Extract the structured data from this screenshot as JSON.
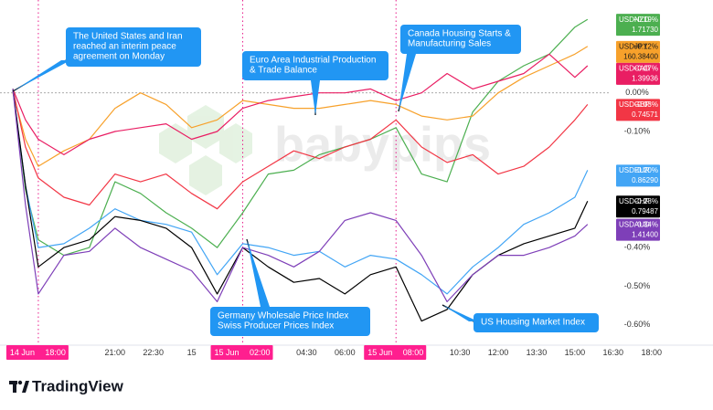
{
  "chart_data": {
    "type": "line",
    "watermark": "babypips",
    "brand": "TradingView",
    "x": [
      17,
      17.5,
      18,
      19,
      20,
      21,
      22,
      23,
      24,
      25,
      26,
      27,
      28,
      29,
      30,
      31,
      32,
      33,
      34,
      35,
      36,
      37,
      38,
      39,
      39.5
    ],
    "xlim": [
      16.5,
      40.4
    ],
    "xticks": [
      {
        "value": 18,
        "label": "18:00"
      },
      {
        "value": 21,
        "label": "21:00"
      },
      {
        "value": 22.5,
        "label": "22:30"
      },
      {
        "value": 24,
        "label": "15"
      },
      {
        "value": 26,
        "label": "02:00"
      },
      {
        "value": 28.5,
        "label": "04:30"
      },
      {
        "value": 30,
        "label": "06:00"
      },
      {
        "value": 32,
        "label": "08:00"
      },
      {
        "value": 34.5,
        "label": "10:30"
      },
      {
        "value": 36,
        "label": "12:00"
      },
      {
        "value": 37.5,
        "label": "13:30"
      },
      {
        "value": 39,
        "label": "15:00"
      },
      {
        "value": 40.5,
        "label": "16:30"
      },
      {
        "value": 42,
        "label": "18:00"
      }
    ],
    "marker_dates": [
      {
        "value": 18,
        "label": "14 Jun"
      },
      {
        "value": 26,
        "label": "15 Jun"
      },
      {
        "value": 32,
        "label": "15 Jun"
      }
    ],
    "ylim": [
      -0.65,
      0.24
    ],
    "yticks": [
      {
        "value": 0,
        "label": "0.00%"
      },
      {
        "value": -0.1,
        "label": "-0.10%"
      },
      {
        "value": -0.4,
        "label": "-0.40%"
      },
      {
        "value": -0.5,
        "label": "-0.50%"
      },
      {
        "value": -0.6,
        "label": "-0.60%"
      }
    ],
    "zero_line": true,
    "series": [
      {
        "name": "USDNZD",
        "color": "#4caf50",
        "text_color": "#ffffff",
        "change_label": "+0.19%",
        "price": "1.71730",
        "values": [
          0.01,
          -0.25,
          -0.38,
          -0.42,
          -0.4,
          -0.23,
          -0.26,
          -0.31,
          -0.35,
          -0.4,
          -0.31,
          -0.21,
          -0.2,
          -0.16,
          -0.14,
          -0.12,
          -0.09,
          -0.21,
          -0.23,
          -0.05,
          0.03,
          0.07,
          0.1,
          0.17,
          0.19
        ]
      },
      {
        "name": "USDJPY",
        "color": "#f7a12b",
        "text_color": "#1a1a1a",
        "change_label": "+0.12%",
        "price": "160.38400",
        "values": [
          0.0,
          -0.12,
          -0.19,
          -0.15,
          -0.12,
          -0.04,
          0.0,
          -0.03,
          -0.09,
          -0.07,
          -0.02,
          -0.03,
          -0.04,
          -0.04,
          -0.03,
          -0.02,
          -0.03,
          -0.06,
          -0.07,
          -0.06,
          0.0,
          0.04,
          0.07,
          0.1,
          0.12
        ]
      },
      {
        "name": "USDCAD",
        "color": "#e91e63",
        "text_color": "#ffffff",
        "change_label": "+0.07%",
        "price": "1.39936",
        "values": [
          0.01,
          -0.07,
          -0.12,
          -0.16,
          -0.12,
          -0.1,
          -0.09,
          -0.08,
          -0.12,
          -0.1,
          -0.04,
          -0.02,
          -0.01,
          0.0,
          0.0,
          0.01,
          -0.02,
          0.0,
          0.05,
          0.01,
          0.03,
          0.05,
          0.1,
          0.04,
          0.07
        ]
      },
      {
        "name": "USDGBP",
        "color": "#f23645",
        "text_color": "#ffffff",
        "change_label": "-0.03%",
        "price": "0.74571",
        "values": [
          0.01,
          -0.14,
          -0.22,
          -0.27,
          -0.29,
          -0.21,
          -0.23,
          -0.21,
          -0.26,
          -0.3,
          -0.23,
          -0.19,
          -0.15,
          -0.17,
          -0.14,
          -0.12,
          -0.07,
          -0.14,
          -0.18,
          -0.16,
          -0.21,
          -0.19,
          -0.14,
          -0.07,
          -0.03
        ]
      },
      {
        "name": "USDEUR",
        "color": "#42a5f5",
        "text_color": "#ffffff",
        "change_label": "-0.20%",
        "price": "0.86290",
        "values": [
          0.01,
          -0.24,
          -0.4,
          -0.39,
          -0.35,
          -0.3,
          -0.33,
          -0.34,
          -0.36,
          -0.47,
          -0.39,
          -0.4,
          -0.42,
          -0.41,
          -0.45,
          -0.42,
          -0.43,
          -0.47,
          -0.52,
          -0.45,
          -0.4,
          -0.34,
          -0.31,
          -0.27,
          -0.2
        ]
      },
      {
        "name": "USDCHF",
        "color": "#000000",
        "text_color": "#ffffff",
        "change_label": "-0.28%",
        "price": "0.79487",
        "values": [
          0.01,
          -0.24,
          -0.45,
          -0.4,
          -0.38,
          -0.32,
          -0.33,
          -0.35,
          -0.4,
          -0.52,
          -0.4,
          -0.45,
          -0.49,
          -0.48,
          -0.52,
          -0.47,
          -0.45,
          -0.59,
          -0.56,
          -0.47,
          -0.42,
          -0.39,
          -0.37,
          -0.35,
          -0.28
        ]
      },
      {
        "name": "USDAUD",
        "color": "#7e3fb8",
        "text_color": "#ffffff",
        "change_label": "-0.34%",
        "price": "1.41400",
        "values": [
          0.01,
          -0.29,
          -0.52,
          -0.42,
          -0.41,
          -0.35,
          -0.4,
          -0.43,
          -0.46,
          -0.54,
          -0.4,
          -0.42,
          -0.45,
          -0.41,
          -0.33,
          -0.31,
          -0.33,
          -0.42,
          -0.54,
          -0.47,
          -0.42,
          -0.42,
          -0.4,
          -0.37,
          -0.34
        ]
      }
    ],
    "annotations": [
      {
        "lines": [
          "The United States and Iran",
          "reached an interim peace",
          "agreement on Monday"
        ]
      },
      {
        "lines": [
          "Euro Area Industrial Production",
          "& Trade Balance"
        ]
      },
      {
        "lines": [
          "Canada Housing Starts &",
          "Manufacturing Sales"
        ]
      },
      {
        "lines": [
          "Germany Wholesale Price Index",
          "Swiss Producer Prices Index"
        ]
      },
      {
        "lines": [
          "US Housing Market Index"
        ]
      }
    ]
  }
}
